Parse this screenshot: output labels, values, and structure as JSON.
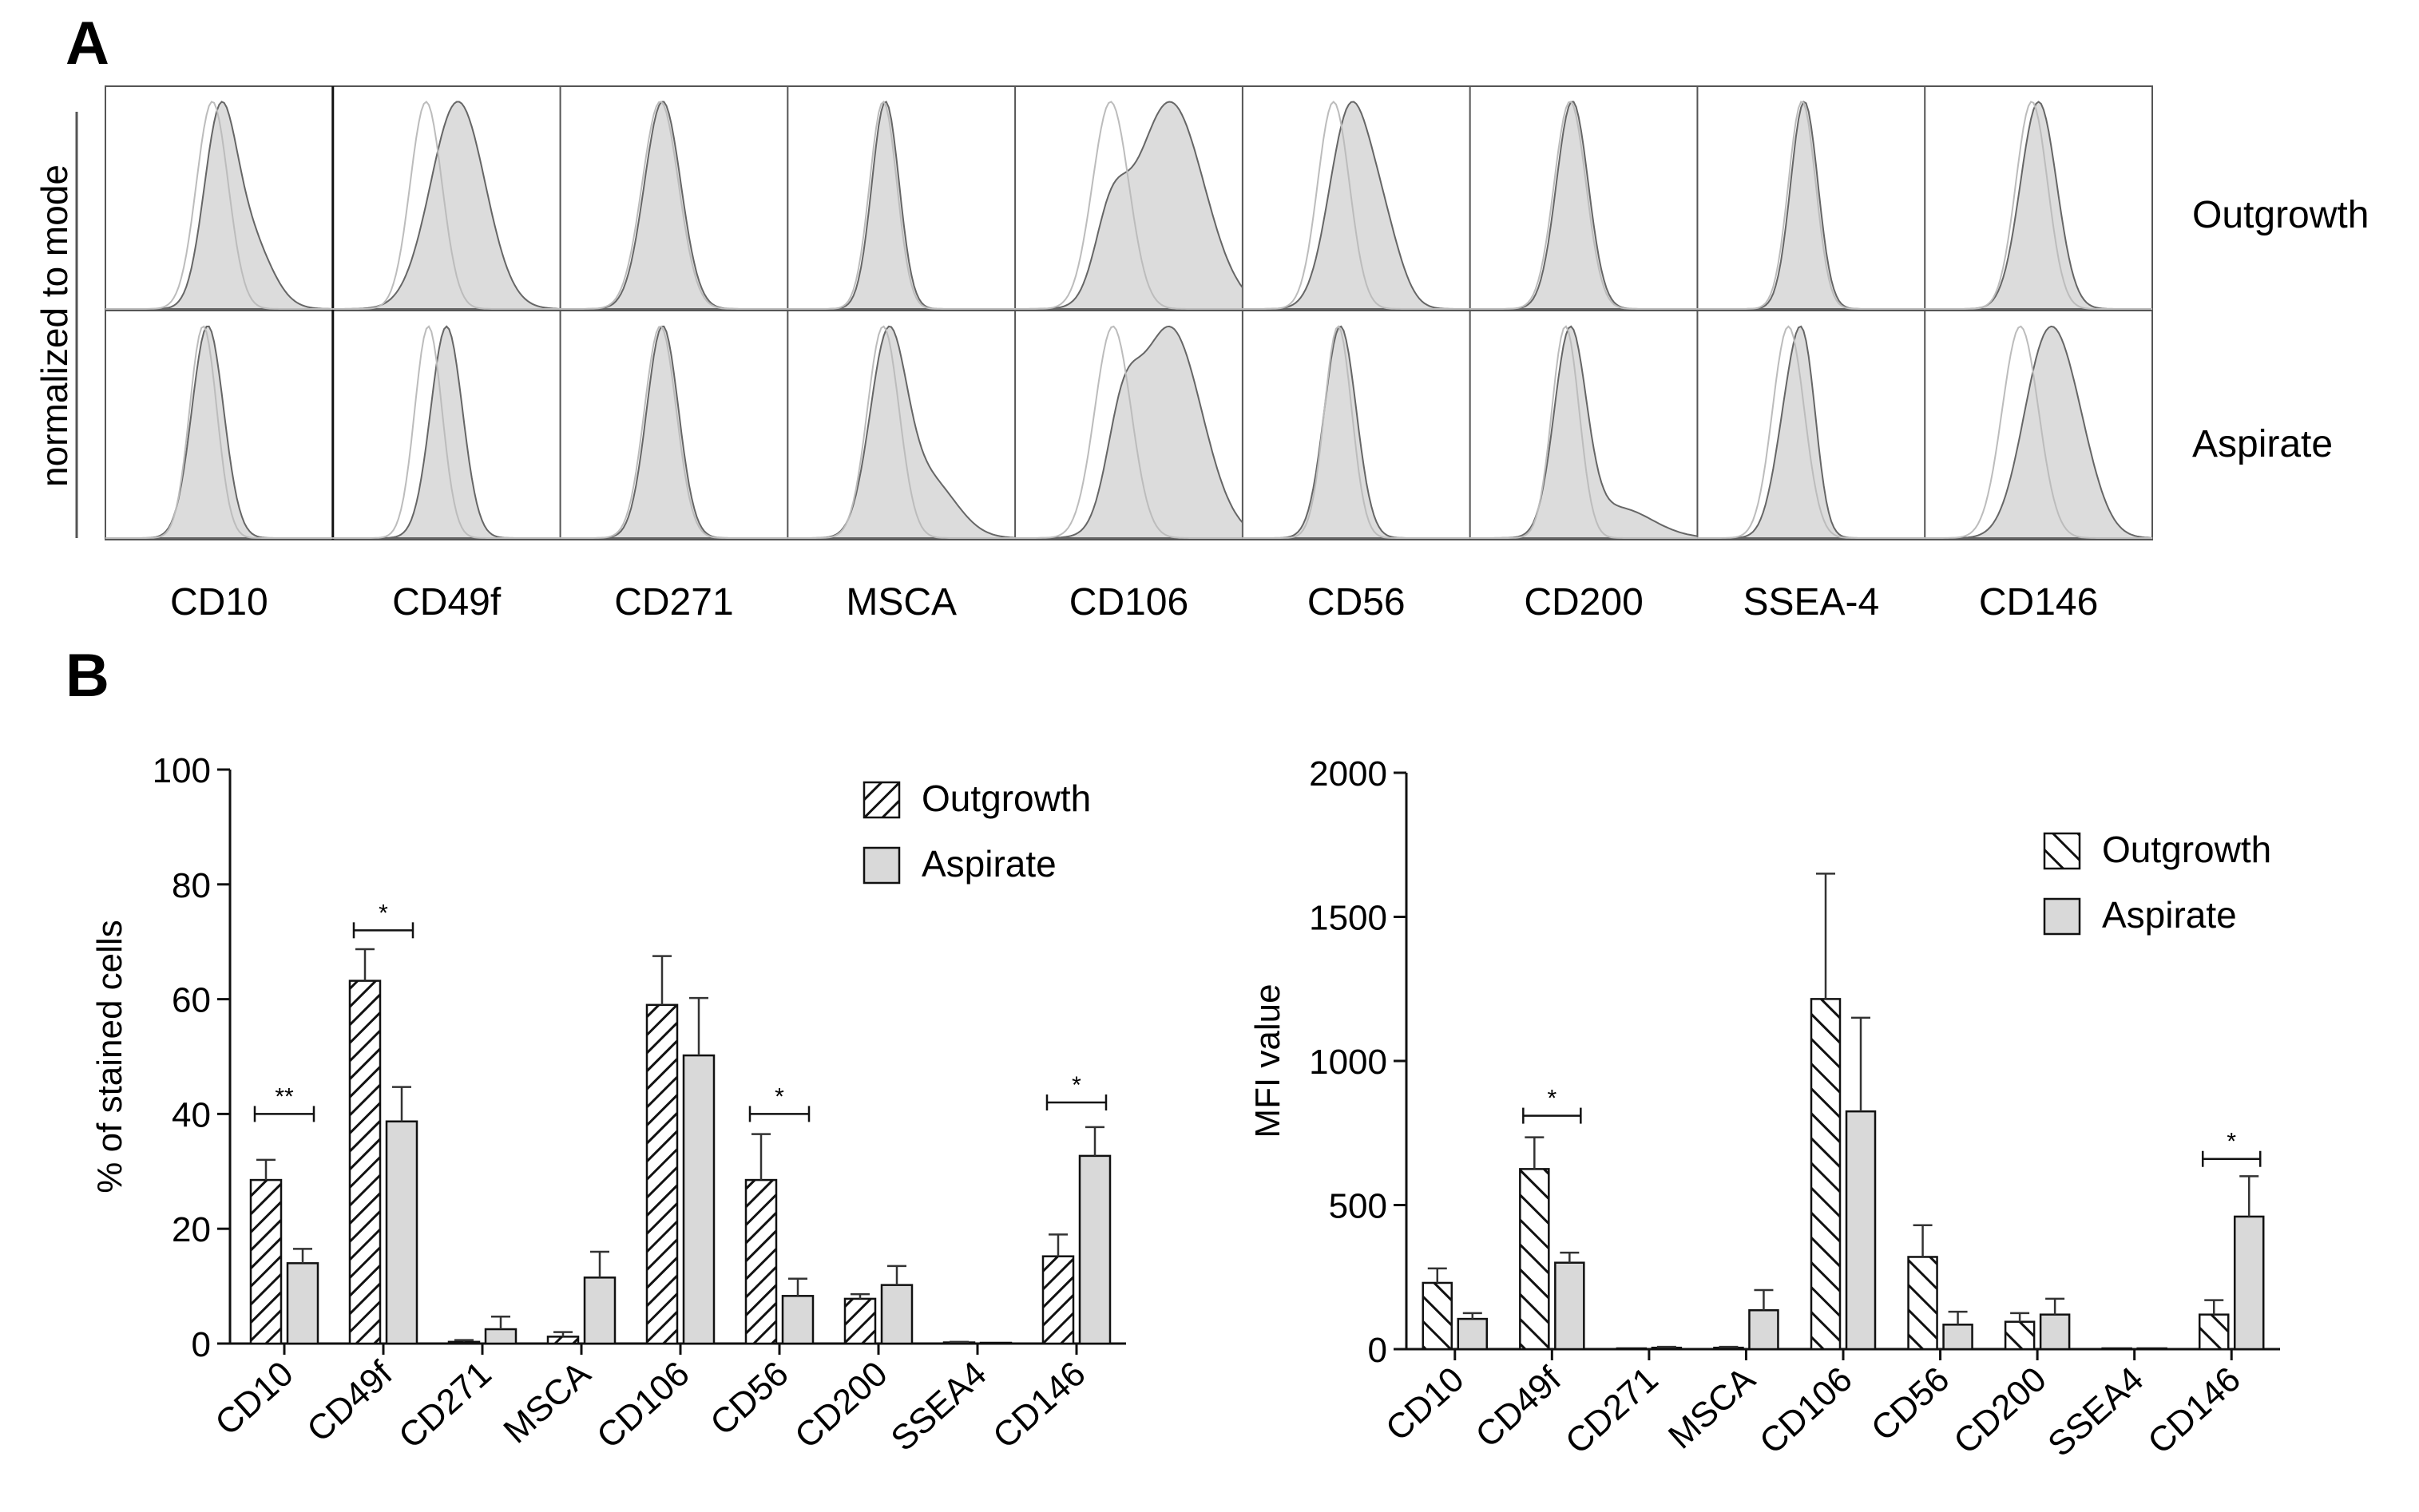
{
  "colors": {
    "outgrowth_fill": "#ffffff",
    "aspirate_fill": "#d9d9d9",
    "axis": "#111111",
    "panel_border": "#555555",
    "hist_fill": "#dcdcdc",
    "hist_line": "#666666",
    "iso_line": "#bcbcbc"
  },
  "panel_a": {
    "label": "A",
    "ylabel": "normalized to mode",
    "rows": [
      "Outgrowth",
      "Aspirate"
    ],
    "markers": [
      "CD10",
      "CD49f",
      "CD271",
      "MSCA",
      "CD106",
      "CD56",
      "CD200",
      "SSEA-4",
      "CD146"
    ],
    "histograms": [
      [
        {
          "marker": "CD10",
          "iso": [
            0.47,
            0.07
          ],
          "stain": [
            [
              0.5,
              0.07,
              1.0
            ],
            [
              0.62,
              0.1,
              0.45
            ]
          ]
        },
        {
          "marker": "CD49f",
          "iso": [
            0.41,
            0.07
          ],
          "stain": [
            [
              0.55,
              0.12,
              1.0
            ]
          ]
        },
        {
          "marker": "CD271",
          "iso": [
            0.44,
            0.08
          ],
          "stain": [
            [
              0.45,
              0.08,
              1.0
            ]
          ]
        },
        {
          "marker": "MSCA",
          "iso": [
            0.42,
            0.06
          ],
          "stain": [
            [
              0.43,
              0.06,
              1.0
            ]
          ]
        },
        {
          "marker": "CD106",
          "iso": [
            0.42,
            0.08
          ],
          "stain": [
            [
              0.42,
              0.07,
              0.3
            ],
            [
              0.68,
              0.15,
              0.85
            ]
          ]
        },
        {
          "marker": "CD56",
          "iso": [
            0.4,
            0.07
          ],
          "stain": [
            [
              0.47,
              0.09,
              1.0
            ],
            [
              0.62,
              0.08,
              0.35
            ]
          ]
        },
        {
          "marker": "CD200",
          "iso": [
            0.44,
            0.07
          ],
          "stain": [
            [
              0.45,
              0.07,
              1.0
            ]
          ]
        },
        {
          "marker": "SSEA-4",
          "iso": [
            0.46,
            0.06
          ],
          "stain": [
            [
              0.47,
              0.06,
              1.0
            ]
          ]
        },
        {
          "marker": "CD146",
          "iso": [
            0.47,
            0.07
          ],
          "stain": [
            [
              0.5,
              0.08,
              1.0
            ]
          ]
        }
      ],
      [
        {
          "marker": "CD10",
          "iso": [
            0.43,
            0.06
          ],
          "stain": [
            [
              0.45,
              0.07,
              1.0
            ]
          ]
        },
        {
          "marker": "CD49f",
          "iso": [
            0.42,
            0.06
          ],
          "stain": [
            [
              0.5,
              0.07,
              1.0
            ]
          ]
        },
        {
          "marker": "CD271",
          "iso": [
            0.44,
            0.07
          ],
          "stain": [
            [
              0.45,
              0.07,
              1.0
            ]
          ]
        },
        {
          "marker": "MSCA",
          "iso": [
            0.42,
            0.07
          ],
          "stain": [
            [
              0.44,
              0.08,
              1.0
            ],
            [
              0.62,
              0.12,
              0.3
            ]
          ]
        },
        {
          "marker": "CD106",
          "iso": [
            0.43,
            0.08
          ],
          "stain": [
            [
              0.47,
              0.07,
              0.35
            ],
            [
              0.68,
              0.14,
              0.85
            ]
          ]
        },
        {
          "marker": "CD56",
          "iso": [
            0.42,
            0.06
          ],
          "stain": [
            [
              0.43,
              0.07,
              1.0
            ]
          ]
        },
        {
          "marker": "CD200",
          "iso": [
            0.42,
            0.06
          ],
          "stain": [
            [
              0.44,
              0.07,
              1.0
            ],
            [
              0.65,
              0.15,
              0.15
            ]
          ]
        },
        {
          "marker": "SSEA-4",
          "iso": [
            0.4,
            0.07
          ],
          "stain": [
            [
              0.42,
              0.07,
              0.95
            ],
            [
              0.48,
              0.05,
              0.6
            ]
          ]
        },
        {
          "marker": "CD146",
          "iso": [
            0.42,
            0.08
          ],
          "stain": [
            [
              0.52,
              0.1,
              0.95
            ],
            [
              0.65,
              0.1,
              0.55
            ]
          ]
        }
      ]
    ]
  },
  "panel_b": {
    "label": "B"
  },
  "chart_data": [
    {
      "type": "bar",
      "ylabel": "% of stained cells",
      "ylim": [
        0,
        100
      ],
      "yticks": [
        0,
        20,
        40,
        60,
        80,
        100
      ],
      "categories": [
        "CD10",
        "CD49f",
        "CD271",
        "MSCA",
        "CD106",
        "CD56",
        "CD200",
        "SSEA4",
        "CD146"
      ],
      "series": [
        {
          "name": "Outgrowth",
          "pattern": "hatch",
          "values": [
            28.5,
            63.2,
            0.3,
            1.2,
            59.0,
            28.5,
            7.8,
            0.2,
            15.2
          ],
          "errors": [
            3.5,
            5.5,
            0.3,
            0.8,
            8.5,
            8.0,
            0.8,
            0.1,
            3.8
          ]
        },
        {
          "name": "Aspirate",
          "pattern": "solid",
          "values": [
            14.0,
            38.7,
            2.5,
            11.5,
            50.2,
            8.3,
            10.2,
            0,
            32.7
          ],
          "errors": [
            2.5,
            6.0,
            2.2,
            4.5,
            10.0,
            3.0,
            3.3,
            0,
            5.0
          ]
        }
      ],
      "significance": [
        {
          "category": "CD10",
          "label": "**",
          "y": 40
        },
        {
          "category": "CD49f",
          "label": "*",
          "y": 72
        },
        {
          "category": "CD56",
          "label": "*",
          "y": 40
        },
        {
          "category": "CD146",
          "label": "*",
          "y": 42
        }
      ],
      "legend_position": "top-right",
      "legend": [
        "Outgrowth",
        "Aspirate"
      ]
    },
    {
      "type": "bar",
      "ylabel": "MFI value",
      "ylim": [
        0,
        2000
      ],
      "yticks": [
        0,
        500,
        1000,
        1500,
        2000
      ],
      "categories": [
        "CD10",
        "CD49f",
        "CD271",
        "MSCA",
        "CD106",
        "CD56",
        "CD200",
        "SSEA4",
        "CD146"
      ],
      "series": [
        {
          "name": "Outgrowth",
          "pattern": "hatch",
          "values": [
            230,
            625,
            0,
            5,
            1215,
            320,
            95,
            0,
            120
          ],
          "errors": [
            50,
            110,
            0,
            3,
            435,
            110,
            30,
            0,
            50
          ]
        },
        {
          "name": "Aspirate",
          "pattern": "solid",
          "values": [
            105,
            300,
            5,
            135,
            825,
            85,
            120,
            0,
            460
          ],
          "errors": [
            20,
            35,
            3,
            70,
            325,
            45,
            55,
            0,
            140
          ]
        }
      ],
      "significance": [
        {
          "category": "CD49f",
          "label": "*",
          "y": 810
        },
        {
          "category": "CD146",
          "label": "*",
          "y": 660
        }
      ],
      "legend_position": "top-right",
      "legend": [
        "Outgrowth",
        "Aspirate"
      ]
    }
  ]
}
